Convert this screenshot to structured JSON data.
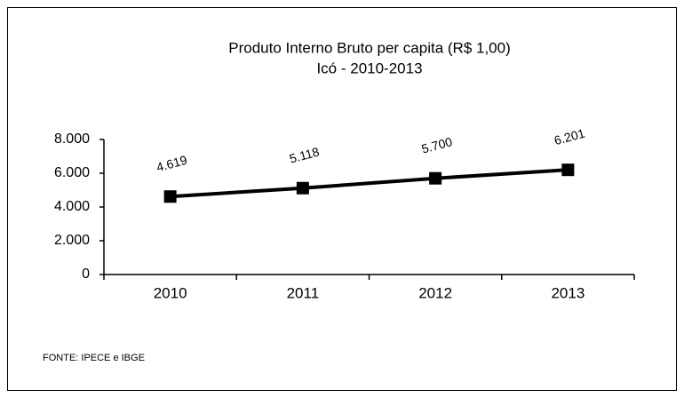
{
  "chart_data": {
    "type": "line",
    "title": "Produto Interno Bruto per capita (R$ 1,00)",
    "subtitle": "Icó - 2010-2013",
    "categories": [
      "2010",
      "2011",
      "2012",
      "2013"
    ],
    "series": [
      {
        "name": null,
        "color": "#000000",
        "values": [
          4619,
          5118,
          5700,
          6201
        ],
        "value_labels": [
          "4.619",
          "5.118",
          "5.700",
          "6.201"
        ]
      }
    ],
    "ylim": [
      0,
      8000
    ],
    "yticks": [
      0,
      {
        "value": 2000,
        "label": "2.000"
      },
      {
        "value": 4000,
        "label": "4.000"
      },
      {
        "value": 6000,
        "label": "6.000"
      },
      {
        "value": 8000,
        "label": "8.000"
      }
    ],
    "source": "FONTE: IPECE e IBGE"
  }
}
